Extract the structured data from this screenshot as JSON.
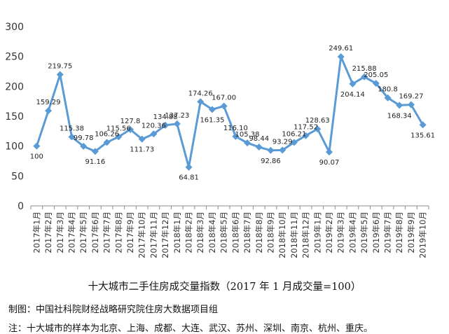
{
  "chart_data": {
    "type": "line",
    "x": [
      "2017年1月",
      "2017年2月",
      "2017年3月",
      "2017年4月",
      "2017年5月",
      "2017年6月",
      "2017年7月",
      "2017年8月",
      "2017年9月",
      "2017年10月",
      "2017年11月",
      "2017年12月",
      "2018年1月",
      "2018年2月",
      "2018年3月",
      "2018年4月",
      "2018年5月",
      "2018年6月",
      "2018年7月",
      "2018年8月",
      "2018年9月",
      "2018年10月",
      "2018年11月",
      "2018年12月",
      "2019年1月",
      "2019年2月",
      "2019年3月",
      "2019年4月",
      "2019年5月",
      "2019年6月",
      "2019年7月",
      "2019年8月",
      "2019年9月",
      "2019年10月"
    ],
    "values": [
      100,
      159.29,
      219.75,
      115.38,
      99.78,
      91.16,
      106.26,
      115.56,
      127.8,
      111.73,
      120.36,
      134.88,
      137.23,
      64.81,
      174.26,
      161.35,
      167.0,
      116.1,
      105.38,
      98.44,
      92.86,
      93.29,
      106.21,
      117.52,
      128.63,
      90.07,
      249.61,
      204.14,
      215.88,
      205.05,
      180.8,
      168.34,
      169.27,
      135.61
    ],
    "labels": [
      "100",
      "159.29",
      "219.75",
      "115.38",
      "99.78",
      "91.16",
      "106.26",
      "115.56",
      "127.8",
      "111.73",
      "120.36",
      "134.88",
      "137.23",
      "64.81",
      "174.26",
      "161.35",
      "167.00",
      "116.10",
      "105.38",
      "98.44",
      "92.86",
      "93.29",
      "106.21",
      "117.52",
      "128.63",
      "90.07",
      "249.61",
      "204.14",
      "215.88",
      "205.05",
      "180.8",
      "168.34",
      "169.27",
      "135.61"
    ],
    "yticks": [
      "0",
      "50",
      "100",
      "150",
      "200",
      "250",
      "300"
    ],
    "ylim": [
      0,
      300
    ],
    "grid": false,
    "legend": "none",
    "line_color": "#5b9bd5"
  },
  "title": "十大城市二手住房成交量指数（2017 年 1 月成交量=100）",
  "credit": "制图：中国社科院财经战略研究院住房大数据项目组",
  "note": "注：十大城市的样本为北京、上海、成都、大连、武汉、苏州、深圳、南京、杭州、重庆。"
}
